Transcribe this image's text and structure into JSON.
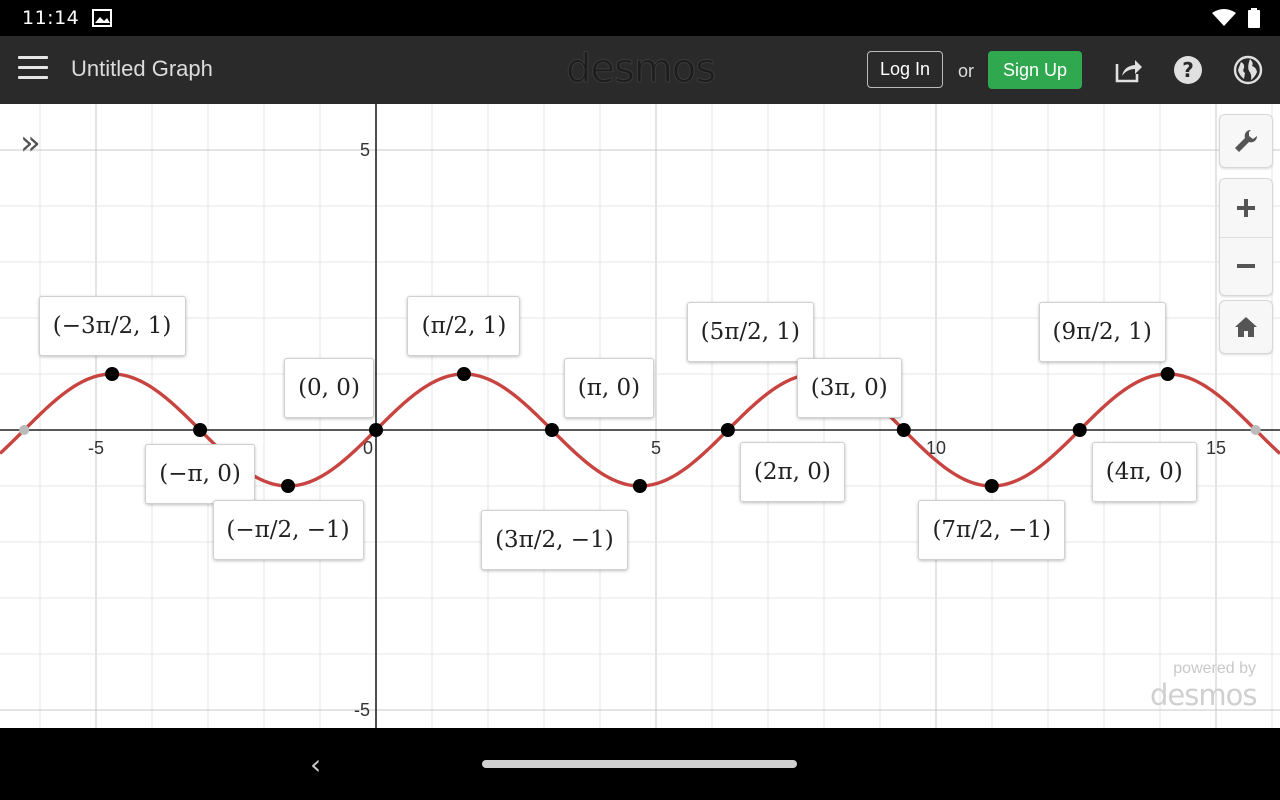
{
  "status_bar": {
    "time": "11:14",
    "notification_icon": "gallery-icon",
    "wifi_icon": "wifi-icon",
    "battery_icon": "battery-icon"
  },
  "header": {
    "menu_icon": "hamburger-icon",
    "title": "Untitled Graph",
    "brand": "desmos",
    "login_label": "Log In",
    "or_label": "or",
    "signup_label": "Sign Up",
    "share_icon": "share-icon",
    "help_icon": "help-icon",
    "language_icon": "globe-icon",
    "signup_color": "#2fa84f"
  },
  "graph": {
    "expand_icon": "double-chevron-right-icon",
    "tools": {
      "settings_icon": "wrench-icon",
      "zoom_in_icon": "plus-icon",
      "zoom_out_icon": "minus-icon",
      "home_icon": "home-icon"
    },
    "curve_color": "#c74440",
    "powered_by": "powered by",
    "powered_brand": "desmos"
  },
  "chart_data": {
    "type": "line",
    "function": "y = sin(x)",
    "xlim": [
      -6.7,
      16.1
    ],
    "ylim": [
      -5.2,
      5.6
    ],
    "x_ticks": [
      {
        "value": -5,
        "label": "-5"
      },
      {
        "value": 0,
        "label": "0"
      },
      {
        "value": 5,
        "label": "5"
      },
      {
        "value": 10,
        "label": "10"
      },
      {
        "value": 15,
        "label": "15"
      }
    ],
    "y_ticks": [
      {
        "value": 5,
        "label": "5"
      },
      {
        "value": -5,
        "label": "-5"
      }
    ],
    "grid": true,
    "points": [
      {
        "x": -6.2832,
        "y": 0,
        "label": "",
        "hollow": true
      },
      {
        "x": -4.7124,
        "y": 1,
        "label": "(−3π/2, 1)",
        "pos": "above"
      },
      {
        "x": -3.1416,
        "y": 0,
        "label": "(−π, 0)",
        "pos": "below"
      },
      {
        "x": -1.5708,
        "y": -1,
        "label": "(−π/2, −1)",
        "pos": "below"
      },
      {
        "x": 0,
        "y": 0,
        "label": "(0, 0)",
        "pos": "above-left"
      },
      {
        "x": 1.5708,
        "y": 1,
        "label": "(π/2, 1)",
        "pos": "above"
      },
      {
        "x": 3.1416,
        "y": 0,
        "label": "(π, 0)",
        "pos": "above-right"
      },
      {
        "x": 4.7124,
        "y": -1,
        "label": "(3π/2, −1)",
        "pos": "below-left"
      },
      {
        "x": 6.2832,
        "y": 0,
        "label": "(2π, 0)",
        "pos": "below-right"
      },
      {
        "x": 7.854,
        "y": 1,
        "label": "(5π/2, 1)",
        "pos": "above-left"
      },
      {
        "x": 9.4248,
        "y": 0,
        "label": "(3π, 0)",
        "pos": "above-left"
      },
      {
        "x": 10.9956,
        "y": -1,
        "label": "(7π/2, −1)",
        "pos": "below"
      },
      {
        "x": 12.5664,
        "y": 0,
        "label": "(4π, 0)",
        "pos": "below-right"
      },
      {
        "x": 14.1372,
        "y": 1,
        "label": "(9π/2, 1)",
        "pos": "above-left"
      },
      {
        "x": 15.708,
        "y": 0,
        "label": "",
        "hollow": true
      }
    ]
  },
  "nav_bar": {
    "back_icon": "back-chevron-icon",
    "home_handle": "home-gesture-handle"
  }
}
